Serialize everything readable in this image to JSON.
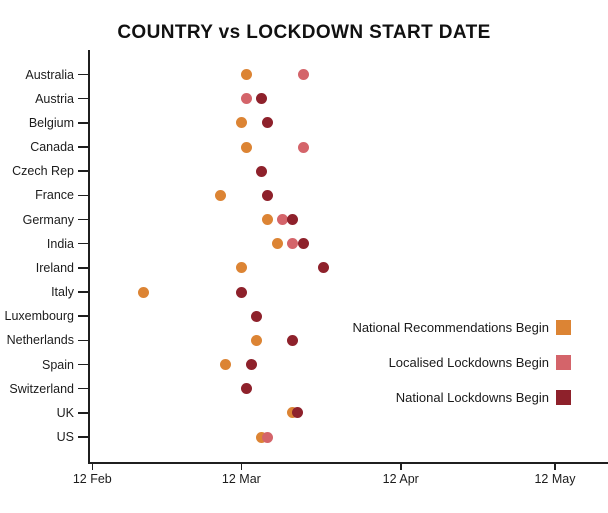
{
  "page": {
    "background": "#ffffff"
  },
  "chart_data": {
    "type": "scatter",
    "title": "COUNTRY vs LOCKDOWN START DATE",
    "grid": false,
    "x_axis": {
      "epoch_date": "12 Feb",
      "tick_labels": [
        "12 Feb",
        "12 Mar",
        "12 Apr",
        "12 May"
      ],
      "tick_days_from_epoch": [
        0,
        29,
        60,
        90
      ]
    },
    "y_axis": {
      "categories": [
        "Australia",
        "Austria",
        "Belgium",
        "Canada",
        "Czech Rep",
        "France",
        "Germany",
        "India",
        "Ireland",
        "Italy",
        "Luxembourg",
        "Netherlands",
        "Spain",
        "Switzerland",
        "UK",
        "US"
      ]
    },
    "legend": {
      "position": "middle-right",
      "items": [
        {
          "label": "National Recommendations Begin",
          "color": "#DC8434"
        },
        {
          "label": "Localised Lockdowns Begin",
          "color": "#D4646A"
        },
        {
          "label": "National Lockdowns Begin",
          "color": "#8E212B"
        }
      ]
    },
    "series": [
      {
        "name": "National Recommendations Begin",
        "color": "#DC8434",
        "points": [
          {
            "country": "Australia",
            "date": "13 Mar",
            "day": 30
          },
          {
            "country": "Belgium",
            "date": "12 Mar",
            "day": 29
          },
          {
            "country": "Canada",
            "date": "13 Mar",
            "day": 30
          },
          {
            "country": "France",
            "date": "8 Mar",
            "day": 25
          },
          {
            "country": "Germany",
            "date": "17 Mar",
            "day": 34
          },
          {
            "country": "India",
            "date": "19 Mar",
            "day": 36
          },
          {
            "country": "Ireland",
            "date": "12 Mar",
            "day": 29
          },
          {
            "country": "Italy",
            "date": "22 Feb",
            "day": 10
          },
          {
            "country": "Netherlands",
            "date": "15 Mar",
            "day": 32
          },
          {
            "country": "Spain",
            "date": "9 Mar",
            "day": 26
          },
          {
            "country": "UK",
            "date": "22 Mar",
            "day": 39
          },
          {
            "country": "US",
            "date": "16 Mar",
            "day": 33
          }
        ]
      },
      {
        "name": "Localised Lockdowns Begin",
        "color": "#D4646A",
        "points": [
          {
            "country": "Australia",
            "date": "24 Mar",
            "day": 41
          },
          {
            "country": "Austria",
            "date": "13 Mar",
            "day": 30
          },
          {
            "country": "Canada",
            "date": "24 Mar",
            "day": 41
          },
          {
            "country": "Germany",
            "date": "20 Mar",
            "day": 37
          },
          {
            "country": "India",
            "date": "22 Mar",
            "day": 39
          },
          {
            "country": "US",
            "date": "17 Mar",
            "day": 34
          }
        ]
      },
      {
        "name": "National Lockdowns Begin",
        "color": "#8E212B",
        "points": [
          {
            "country": "Austria",
            "date": "16 Mar",
            "day": 33
          },
          {
            "country": "Belgium",
            "date": "17 Mar",
            "day": 34
          },
          {
            "country": "Czech Rep",
            "date": "16 Mar",
            "day": 33
          },
          {
            "country": "France",
            "date": "17 Mar",
            "day": 34
          },
          {
            "country": "Germany",
            "date": "22 Mar",
            "day": 39
          },
          {
            "country": "India",
            "date": "24 Mar",
            "day": 41
          },
          {
            "country": "Ireland",
            "date": "28 Mar",
            "day": 45
          },
          {
            "country": "Italy",
            "date": "12 Mar",
            "day": 29
          },
          {
            "country": "Luxembourg",
            "date": "15 Mar",
            "day": 32
          },
          {
            "country": "Netherlands",
            "date": "22 Mar",
            "day": 39
          },
          {
            "country": "Spain",
            "date": "14 Mar",
            "day": 31
          },
          {
            "country": "Switzerland",
            "date": "13 Mar",
            "day": 30
          },
          {
            "country": "UK",
            "date": "23 Mar",
            "day": 40
          }
        ]
      }
    ]
  }
}
